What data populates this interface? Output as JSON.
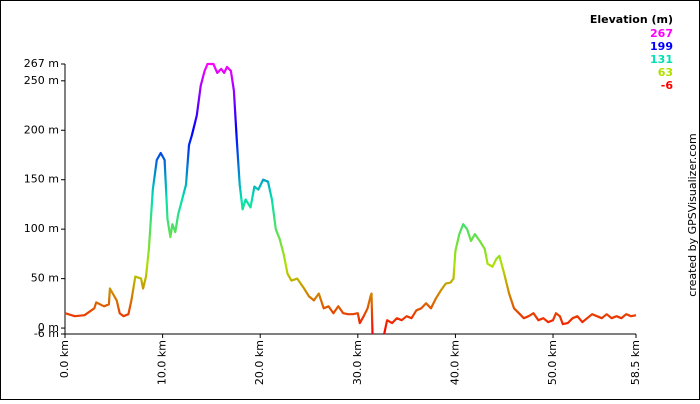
{
  "chart_data": {
    "type": "line",
    "credit": "created by GPSVisualizer.com",
    "colorscale": {
      "title": "Elevation (m)",
      "values": [
        267,
        199,
        131,
        63,
        -6
      ],
      "colors": [
        "#ff00ff",
        "#0000ff",
        "#00e0b0",
        "#b0e000",
        "#ff0000"
      ]
    },
    "xlim": [
      0,
      58.5
    ],
    "ylim": [
      -6,
      267
    ],
    "xticks": [
      {
        "value": 0,
        "label": "0.0 km"
      },
      {
        "value": 10,
        "label": "10.0 km"
      },
      {
        "value": 20,
        "label": "20.0 km"
      },
      {
        "value": 30,
        "label": "30.0 km"
      },
      {
        "value": 40,
        "label": "40.0 km"
      },
      {
        "value": 50,
        "label": "50.0 km"
      },
      {
        "value": 58.5,
        "label": "58.5 km"
      }
    ],
    "yticks": [
      {
        "value": 267,
        "label": "267 m"
      },
      {
        "value": 250,
        "label": "250 m"
      },
      {
        "value": 200,
        "label": "200 m"
      },
      {
        "value": 150,
        "label": "150 m"
      },
      {
        "value": 100,
        "label": "100 m"
      },
      {
        "value": 50,
        "label": "50 m"
      },
      {
        "value": 0,
        "label": "0 m"
      },
      {
        "value": -6,
        "label": "-6 m"
      }
    ],
    "x": [
      0,
      1,
      2,
      3,
      3.2,
      4,
      4.5,
      4.6,
      5.3,
      5.6,
      6,
      6.5,
      6.8,
      7.2,
      7.8,
      8,
      8.3,
      8.6,
      9,
      9.4,
      9.8,
      10.2,
      10.5,
      10.8,
      11,
      11.3,
      11.6,
      12,
      12.4,
      12.7,
      13,
      13.5,
      13.9,
      14.3,
      14.6,
      15.2,
      15.6,
      16,
      16.3,
      16.6,
      17,
      17.3,
      17.6,
      17.9,
      18.2,
      18.5,
      19,
      19.4,
      19.8,
      20.3,
      20.8,
      21.2,
      21.6,
      22,
      22.4,
      22.8,
      23.2,
      23.8,
      24.5,
      25,
      25.5,
      26,
      26.5,
      27,
      27.5,
      28,
      28.5,
      29,
      29.5,
      30,
      30.2,
      30.6,
      31,
      31.3,
      31.4,
      31.5,
      31.6,
      32.7,
      33,
      33.5,
      34,
      34.5,
      35,
      35.5,
      36,
      36.5,
      37,
      37.5,
      38,
      38.5,
      39,
      39.5,
      39.8,
      40,
      40.4,
      40.8,
      41.2,
      41.6,
      42,
      42.5,
      43,
      43.3,
      43.8,
      44.2,
      44.5,
      45,
      45.5,
      46,
      46.5,
      47,
      47.5,
      48,
      48.5,
      49,
      49.5,
      50,
      50.3,
      50.7,
      51,
      51.5,
      52,
      52.5,
      53,
      53.5,
      54,
      54.5,
      55,
      55.5,
      56,
      56.5,
      57,
      57.5,
      58,
      58.5
    ],
    "values": [
      15,
      12,
      13,
      20,
      26,
      22,
      24,
      40,
      28,
      15,
      12,
      14,
      28,
      52,
      50,
      40,
      52,
      80,
      140,
      170,
      177,
      170,
      110,
      92,
      105,
      97,
      115,
      130,
      145,
      185,
      195,
      215,
      245,
      260,
      267,
      267,
      258,
      262,
      258,
      264,
      260,
      240,
      190,
      145,
      120,
      130,
      122,
      143,
      140,
      150,
      148,
      130,
      100,
      90,
      75,
      55,
      48,
      50,
      40,
      32,
      28,
      35,
      20,
      22,
      15,
      22,
      15,
      14,
      14,
      15,
      5,
      12,
      20,
      32,
      35,
      -6,
      null,
      -6,
      8,
      5,
      10,
      8,
      12,
      10,
      18,
      20,
      25,
      20,
      30,
      38,
      45,
      46,
      50,
      78,
      95,
      105,
      100,
      88,
      95,
      88,
      80,
      65,
      62,
      70,
      73,
      55,
      35,
      20,
      15,
      10,
      12,
      15,
      8,
      10,
      6,
      8,
      15,
      12,
      4,
      5,
      10,
      12,
      6,
      10,
      14,
      12,
      10,
      14,
      10,
      12,
      10,
      14,
      12,
      13
    ]
  }
}
